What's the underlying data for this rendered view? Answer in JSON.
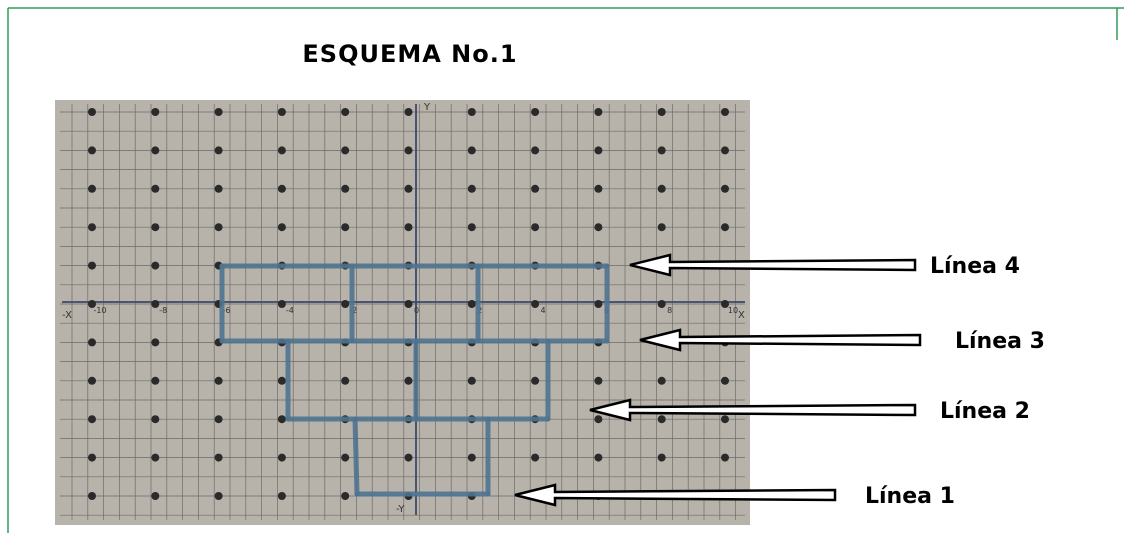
{
  "title": "ESQUEMA No.1",
  "axes": {
    "x_pos": "X",
    "x_neg": "-X",
    "y_pos": "Y",
    "y_neg": "-Y",
    "x_ticks": [
      "-10",
      "-8",
      "-6",
      "-4",
      "-2",
      "0",
      "2",
      "4",
      "6",
      "8",
      "10"
    ]
  },
  "labels": [
    "Línea 4",
    "Línea 3",
    "Línea 2",
    "Línea 1"
  ]
}
